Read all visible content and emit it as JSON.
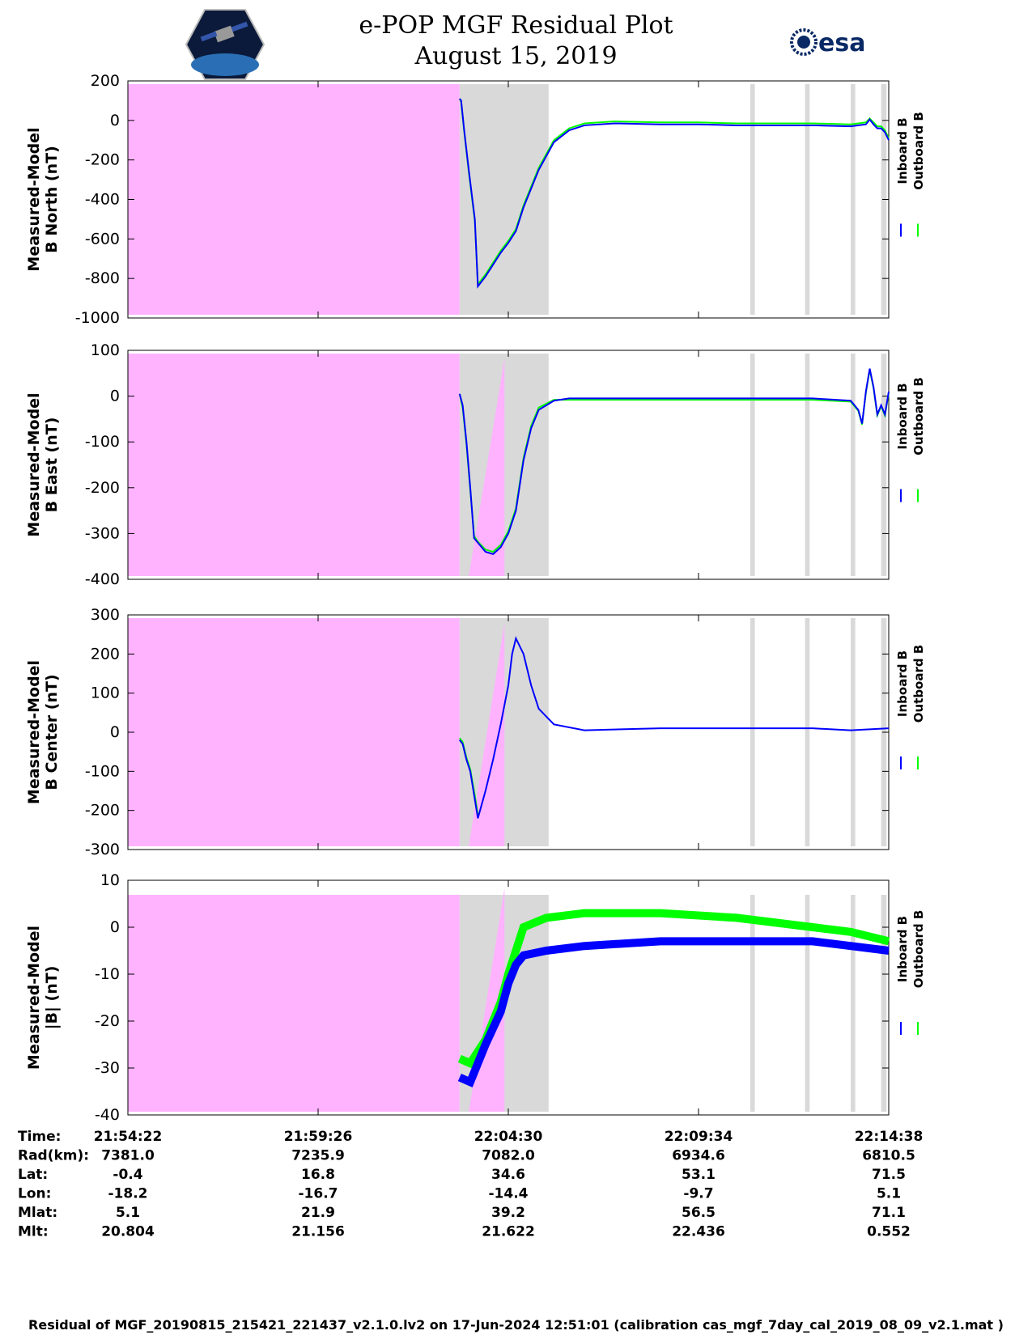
{
  "header": {
    "title_line1": "e-POP MGF Residual Plot",
    "title_line2": "August 15, 2019",
    "logo_left": "satellite-mission-logo",
    "logo_right_text": "esa"
  },
  "colors": {
    "inboard": "#0000ff",
    "outboard": "#00ff00",
    "pink_region": "#ffb3ff",
    "gray_region": "#d9d9d9"
  },
  "chart_data": [
    {
      "type": "line",
      "ylabel_line1": "Measured-Model",
      "ylabel_line2": "B North (nT)",
      "ylim": [
        -1000,
        200
      ],
      "yticks": [
        200,
        0,
        -200,
        -400,
        -600,
        -800,
        -1000
      ],
      "legend": [
        "Inboard B",
        "Outboard B"
      ],
      "series": [
        {
          "name": "Inboard B",
          "x": [
            0.436,
            0.438,
            0.442,
            0.448,
            0.456,
            0.46,
            0.47,
            0.48,
            0.485,
            0.49,
            0.5,
            0.51,
            0.52,
            0.54,
            0.56,
            0.58,
            0.6,
            0.64,
            0.7,
            0.75,
            0.8,
            0.85,
            0.9,
            0.95,
            0.97,
            0.975,
            0.98,
            0.985,
            0.99,
            0.995,
            1.0
          ],
          "y": [
            110,
            100,
            -50,
            -250,
            -500,
            -840,
            -790,
            -730,
            -700,
            -670,
            -620,
            -560,
            -440,
            -250,
            -110,
            -50,
            -25,
            -15,
            -20,
            -20,
            -25,
            -25,
            -25,
            -30,
            -20,
            5,
            -20,
            -40,
            -40,
            -60,
            -100
          ]
        },
        {
          "name": "Outboard B",
          "x": [
            0.436,
            0.438,
            0.442,
            0.448,
            0.456,
            0.46,
            0.47,
            0.48,
            0.485,
            0.49,
            0.5,
            0.51,
            0.52,
            0.54,
            0.56,
            0.58,
            0.6,
            0.64,
            0.7,
            0.75,
            0.8,
            0.85,
            0.9,
            0.95,
            0.97,
            0.975,
            0.98,
            0.985,
            0.99,
            0.995,
            1.0
          ],
          "y": [
            110,
            95,
            -55,
            -260,
            -510,
            -830,
            -780,
            -720,
            -690,
            -660,
            -610,
            -550,
            -430,
            -240,
            -100,
            -40,
            -15,
            -5,
            -10,
            -10,
            -15,
            -15,
            -15,
            -20,
            -10,
            10,
            -10,
            -30,
            -30,
            -50,
            -90
          ]
        }
      ]
    },
    {
      "type": "line",
      "ylabel_line1": "Measured-Model",
      "ylabel_line2": "B East (nT)",
      "ylim": [
        -400,
        100
      ],
      "yticks": [
        100,
        0,
        -100,
        -200,
        -300,
        -400
      ],
      "legend": [
        "Inboard B",
        "Outboard B"
      ],
      "series": [
        {
          "name": "Inboard B",
          "x": [
            0.436,
            0.44,
            0.445,
            0.45,
            0.455,
            0.46,
            0.47,
            0.48,
            0.49,
            0.5,
            0.51,
            0.52,
            0.53,
            0.54,
            0.56,
            0.58,
            0.6,
            0.7,
            0.8,
            0.9,
            0.95,
            0.96,
            0.965,
            0.97,
            0.975,
            0.98,
            0.985,
            0.99,
            0.995,
            1.0
          ],
          "y": [
            5,
            -20,
            -100,
            -200,
            -310,
            -320,
            -340,
            -345,
            -330,
            -300,
            -250,
            -140,
            -70,
            -30,
            -10,
            -5,
            -5,
            -5,
            -5,
            -5,
            -10,
            -30,
            -60,
            10,
            60,
            20,
            -40,
            -20,
            -40,
            10
          ]
        },
        {
          "name": "Outboard B",
          "x": [
            0.436,
            0.44,
            0.445,
            0.45,
            0.455,
            0.46,
            0.47,
            0.48,
            0.49,
            0.5,
            0.51,
            0.52,
            0.53,
            0.54,
            0.56,
            0.58,
            0.6,
            0.7,
            0.8,
            0.9,
            0.95,
            0.96,
            0.965,
            0.97,
            0.975,
            0.98,
            0.985,
            0.99,
            0.995,
            1.0
          ],
          "y": [
            5,
            -25,
            -105,
            -205,
            -305,
            -318,
            -335,
            -340,
            -325,
            -295,
            -245,
            -135,
            -65,
            -25,
            -8,
            -8,
            -8,
            -8,
            -8,
            -8,
            -12,
            -32,
            -62,
            8,
            58,
            18,
            -42,
            -22,
            -42,
            8
          ]
        }
      ]
    },
    {
      "type": "line",
      "ylabel_line1": "Measured-Model",
      "ylabel_line2": "B Center (nT)",
      "ylim": [
        -300,
        300
      ],
      "yticks": [
        300,
        200,
        100,
        0,
        -100,
        -200,
        -300
      ],
      "legend": [
        "Inboard B",
        "Outboard B"
      ],
      "series": [
        {
          "name": "Inboard B",
          "x": [
            0.436,
            0.44,
            0.445,
            0.45,
            0.455,
            0.46,
            0.47,
            0.48,
            0.49,
            0.5,
            0.505,
            0.51,
            0.52,
            0.53,
            0.54,
            0.56,
            0.6,
            0.7,
            0.8,
            0.9,
            0.95,
            1.0
          ],
          "y": [
            -20,
            -30,
            -70,
            -100,
            -160,
            -220,
            -150,
            -70,
            20,
            120,
            200,
            240,
            200,
            120,
            60,
            20,
            5,
            10,
            10,
            10,
            5,
            10
          ]
        },
        {
          "name": "Outboard B",
          "x": [
            0.436,
            0.44,
            0.445,
            0.45,
            0.455,
            0.46
          ],
          "y": [
            -15,
            -25,
            -65,
            -95,
            -150,
            -210
          ]
        }
      ]
    },
    {
      "type": "line",
      "ylabel_line1": "Measured-Model",
      "ylabel_line2": "|B| (nT)",
      "ylim": [
        -40,
        10
      ],
      "yticks": [
        10,
        0,
        -10,
        -20,
        -30,
        -40
      ],
      "legend": [
        "Inboard B",
        "Outboard B"
      ],
      "series": [
        {
          "name": "Inboard B",
          "x": [
            0.436,
            0.45,
            0.47,
            0.49,
            0.5,
            0.51,
            0.52,
            0.55,
            0.6,
            0.7,
            0.8,
            0.9,
            0.95,
            1.0
          ],
          "y": [
            -32,
            -33,
            -25,
            -18,
            -12,
            -8,
            -6,
            -5,
            -4,
            -3,
            -3,
            -3,
            -4,
            -5
          ]
        },
        {
          "name": "Outboard B",
          "x": [
            0.436,
            0.45,
            0.47,
            0.49,
            0.5,
            0.51,
            0.52,
            0.55,
            0.6,
            0.7,
            0.8,
            0.9,
            0.95,
            1.0
          ],
          "y": [
            -28,
            -29,
            -24,
            -16,
            -10,
            -5,
            0,
            2,
            3,
            3,
            2,
            0,
            -1,
            -3
          ]
        }
      ]
    }
  ],
  "ephemeris": {
    "row_labels": [
      "Time:",
      "Rad(km):",
      "Lat:",
      "Lon:",
      "Mlat:",
      "Mlt:"
    ],
    "columns": [
      [
        "21:54:22",
        "7381.0",
        "-0.4",
        "-18.2",
        "5.1",
        "20.804"
      ],
      [
        "21:59:26",
        "7235.9",
        "16.8",
        "-16.7",
        "21.9",
        "21.156"
      ],
      [
        "22:04:30",
        "7082.0",
        "34.6",
        "-14.4",
        "39.2",
        "21.622"
      ],
      [
        "22:09:34",
        "6934.6",
        "53.1",
        "-9.7",
        "56.5",
        "22.436"
      ],
      [
        "22:14:38",
        "6810.5",
        "71.5",
        "5.1",
        "71.1",
        "0.552"
      ]
    ]
  },
  "footer_text": "Residual of MGF_20190815_215421_221437_v2.1.0.lv2 on 17-Jun-2024 12:51:01 (calibration cas_mgf_7day_cal_2019_08_09_v2.1.mat )"
}
